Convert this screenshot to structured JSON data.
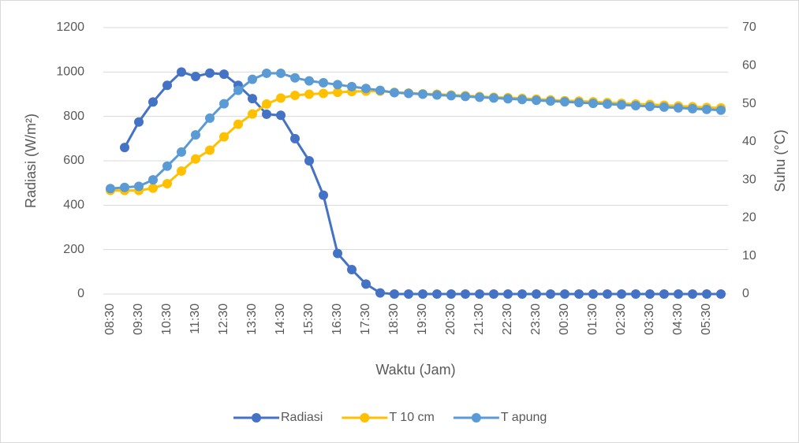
{
  "chart_data": {
    "type": "line",
    "categories": [
      "08:30",
      null,
      "09:30",
      null,
      "10:30",
      null,
      "11:30",
      null,
      "12:30",
      null,
      "13:30",
      null,
      "14:30",
      null,
      "15:30",
      null,
      "16:30",
      null,
      "17:30",
      null,
      "18:30",
      null,
      "19:30",
      null,
      "20:30",
      null,
      "21:30",
      null,
      "22:30",
      null,
      "23:30",
      null,
      "00:30",
      null,
      "01:30",
      null,
      "02:30",
      null,
      "03:30",
      null,
      "04:30",
      null,
      "05:30",
      null
    ],
    "series": [
      {
        "name": "Radiasi",
        "color": "#4472c4",
        "values": [
          null,
          660,
          775,
          865,
          940,
          1000,
          980,
          995,
          990,
          940,
          880,
          810,
          805,
          700,
          600,
          445,
          183,
          110,
          45,
          5,
          0,
          0,
          0,
          0,
          0,
          0,
          0,
          0,
          0,
          0,
          0,
          0,
          0,
          0,
          0,
          0,
          0,
          0,
          0,
          0,
          0,
          0,
          0,
          0
        ]
      },
      {
        "name": "T 10 cm",
        "color": "#ffc000",
        "axis": "y2",
        "values": [
          27.2,
          27.2,
          27.2,
          27.8,
          29,
          32.3,
          35.5,
          37.8,
          41.3,
          44.6,
          47.3,
          49.9,
          51.5,
          52.2,
          52.5,
          52.7,
          53.0,
          53.2,
          53.3,
          53.3,
          53.0,
          52.8,
          52.6,
          52.5,
          52.3,
          52.1,
          51.9,
          51.7,
          51.6,
          51.4,
          51.2,
          51.0,
          50.8,
          50.7,
          50.5,
          50.3,
          50.1,
          49.9,
          49.8,
          49.6,
          49.4,
          49.2,
          49.0,
          48.9
        ]
      },
      {
        "name": "T apung",
        "color": "#5b9bd5",
        "axis": "y2",
        "values": [
          27.7,
          28.0,
          28.3,
          30,
          33.6,
          37.3,
          41.8,
          46.2,
          50.0,
          53.5,
          56.4,
          58.0,
          58.0,
          56.8,
          56.0,
          55.5,
          55.0,
          54.5,
          54.0,
          53.5,
          52.9,
          52.7,
          52.5,
          52.3,
          52.1,
          51.9,
          51.7,
          51.5,
          51.3,
          51.1,
          50.9,
          50.7,
          50.5,
          50.3,
          50.1,
          49.9,
          49.7,
          49.5,
          49.3,
          49.1,
          48.9,
          48.7,
          48.5,
          48.3
        ]
      }
    ],
    "xlabel": "Waktu (Jam)",
    "ylabel": "Radiasi (W/m²)",
    "y2label": "Suhu (°C)",
    "ylim": [
      0,
      1200
    ],
    "yticks": [
      0,
      200,
      400,
      600,
      800,
      1000,
      1200
    ],
    "y2lim": [
      0,
      70
    ],
    "y2ticks": [
      0,
      10,
      20,
      30,
      40,
      50,
      60,
      70
    ],
    "grid": true,
    "legend": "bottom"
  }
}
